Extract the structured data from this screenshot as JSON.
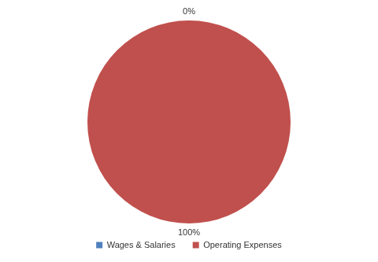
{
  "chart_data": {
    "type": "pie",
    "categories": [
      "Wages & Salaries",
      "Operating Expenses"
    ],
    "values": [
      0,
      100
    ],
    "value_labels": [
      "0%",
      "100%"
    ],
    "colors": [
      "#4f81bd",
      "#c0504d"
    ],
    "data_labels": true,
    "legend": "bottom"
  }
}
